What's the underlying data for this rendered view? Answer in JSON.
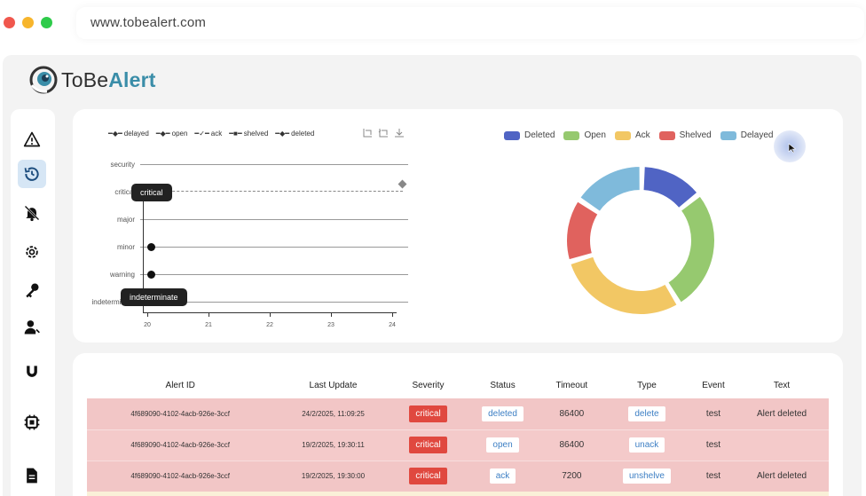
{
  "browser": {
    "url": "www.tobealert.com"
  },
  "logo": {
    "part1": "ToBe",
    "part2": "Alert"
  },
  "sidebar": {
    "items": [
      {
        "name": "alert-triangle-icon",
        "active": false
      },
      {
        "name": "history-icon",
        "active": true
      },
      {
        "name": "bell-off-icon",
        "active": false
      },
      {
        "name": "gear-icon",
        "active": false
      },
      {
        "name": "key-icon",
        "active": false
      },
      {
        "name": "user-icon",
        "active": false
      },
      {
        "name": "magnet-icon",
        "active": false
      },
      {
        "name": "chip-icon",
        "active": false
      },
      {
        "name": "document-icon",
        "active": false
      }
    ]
  },
  "timeline_chart": {
    "legend": [
      "delayed",
      "open",
      "ack",
      "shelved",
      "deleted"
    ],
    "levels": [
      "security",
      "critical",
      "major",
      "minor",
      "warning",
      "indeterminate"
    ],
    "x_ticks": [
      "20",
      "21",
      "22",
      "23",
      "24"
    ],
    "tooltips": {
      "top": "critical",
      "bottom": "indeterminate"
    }
  },
  "chart_data": {
    "type": "pie",
    "categories": [
      "Deleted",
      "Open",
      "Ack",
      "Shelved",
      "Delayed"
    ],
    "values": [
      14,
      27,
      29,
      14,
      16
    ],
    "colors": [
      "#5064c4",
      "#96c96f",
      "#f2c764",
      "#e0625e",
      "#7fbadb"
    ],
    "legend": "top"
  },
  "table": {
    "headers": [
      "Alert ID",
      "Last Update",
      "Severity",
      "Status",
      "Timeout",
      "Type",
      "Event",
      "Text"
    ],
    "rows": [
      {
        "id": "4f689090-4102-4acb-926e-3ccf",
        "last_update": "24/2/2025, 11:09:25",
        "severity": "critical",
        "status": "deleted",
        "timeout": "86400",
        "type": "delete",
        "event": "test",
        "text": "Alert deleted"
      },
      {
        "id": "4f689090-4102-4acb-926e-3ccf",
        "last_update": "19/2/2025, 19:30:11",
        "severity": "critical",
        "status": "open",
        "timeout": "86400",
        "type": "unack",
        "event": "test",
        "text": ""
      },
      {
        "id": "4f689090-4102-4acb-926e-3ccf",
        "last_update": "19/2/2025, 19:30:00",
        "severity": "critical",
        "status": "ack",
        "timeout": "7200",
        "type": "unshelve",
        "event": "test",
        "text": "Alert deleted"
      }
    ]
  }
}
